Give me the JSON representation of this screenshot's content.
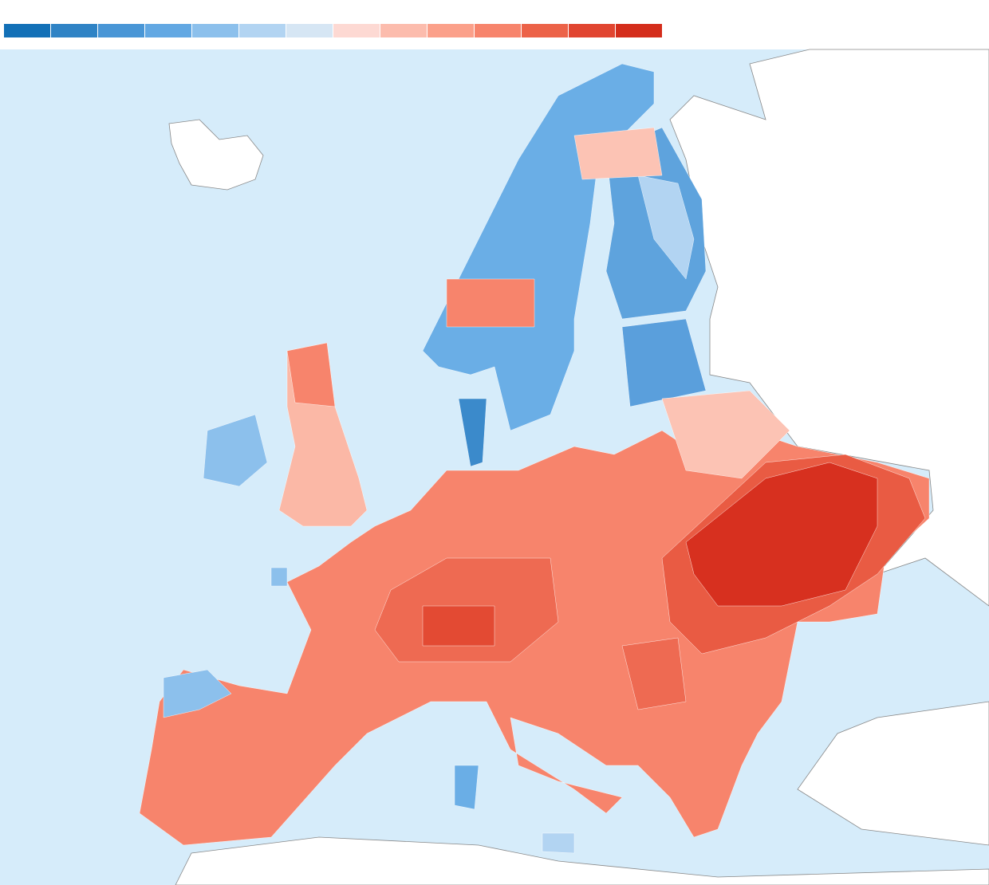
{
  "legend": {
    "colors": [
      "#1270b7",
      "#2f83c5",
      "#4996d6",
      "#62a8e3",
      "#8cc0ec",
      "#b2d4f2",
      "#d6e6f4",
      "#fdd9d3",
      "#fcbcad",
      "#fba08a",
      "#f7846c",
      "#ec6248",
      "#e14530",
      "#d42d1b"
    ]
  }
}
